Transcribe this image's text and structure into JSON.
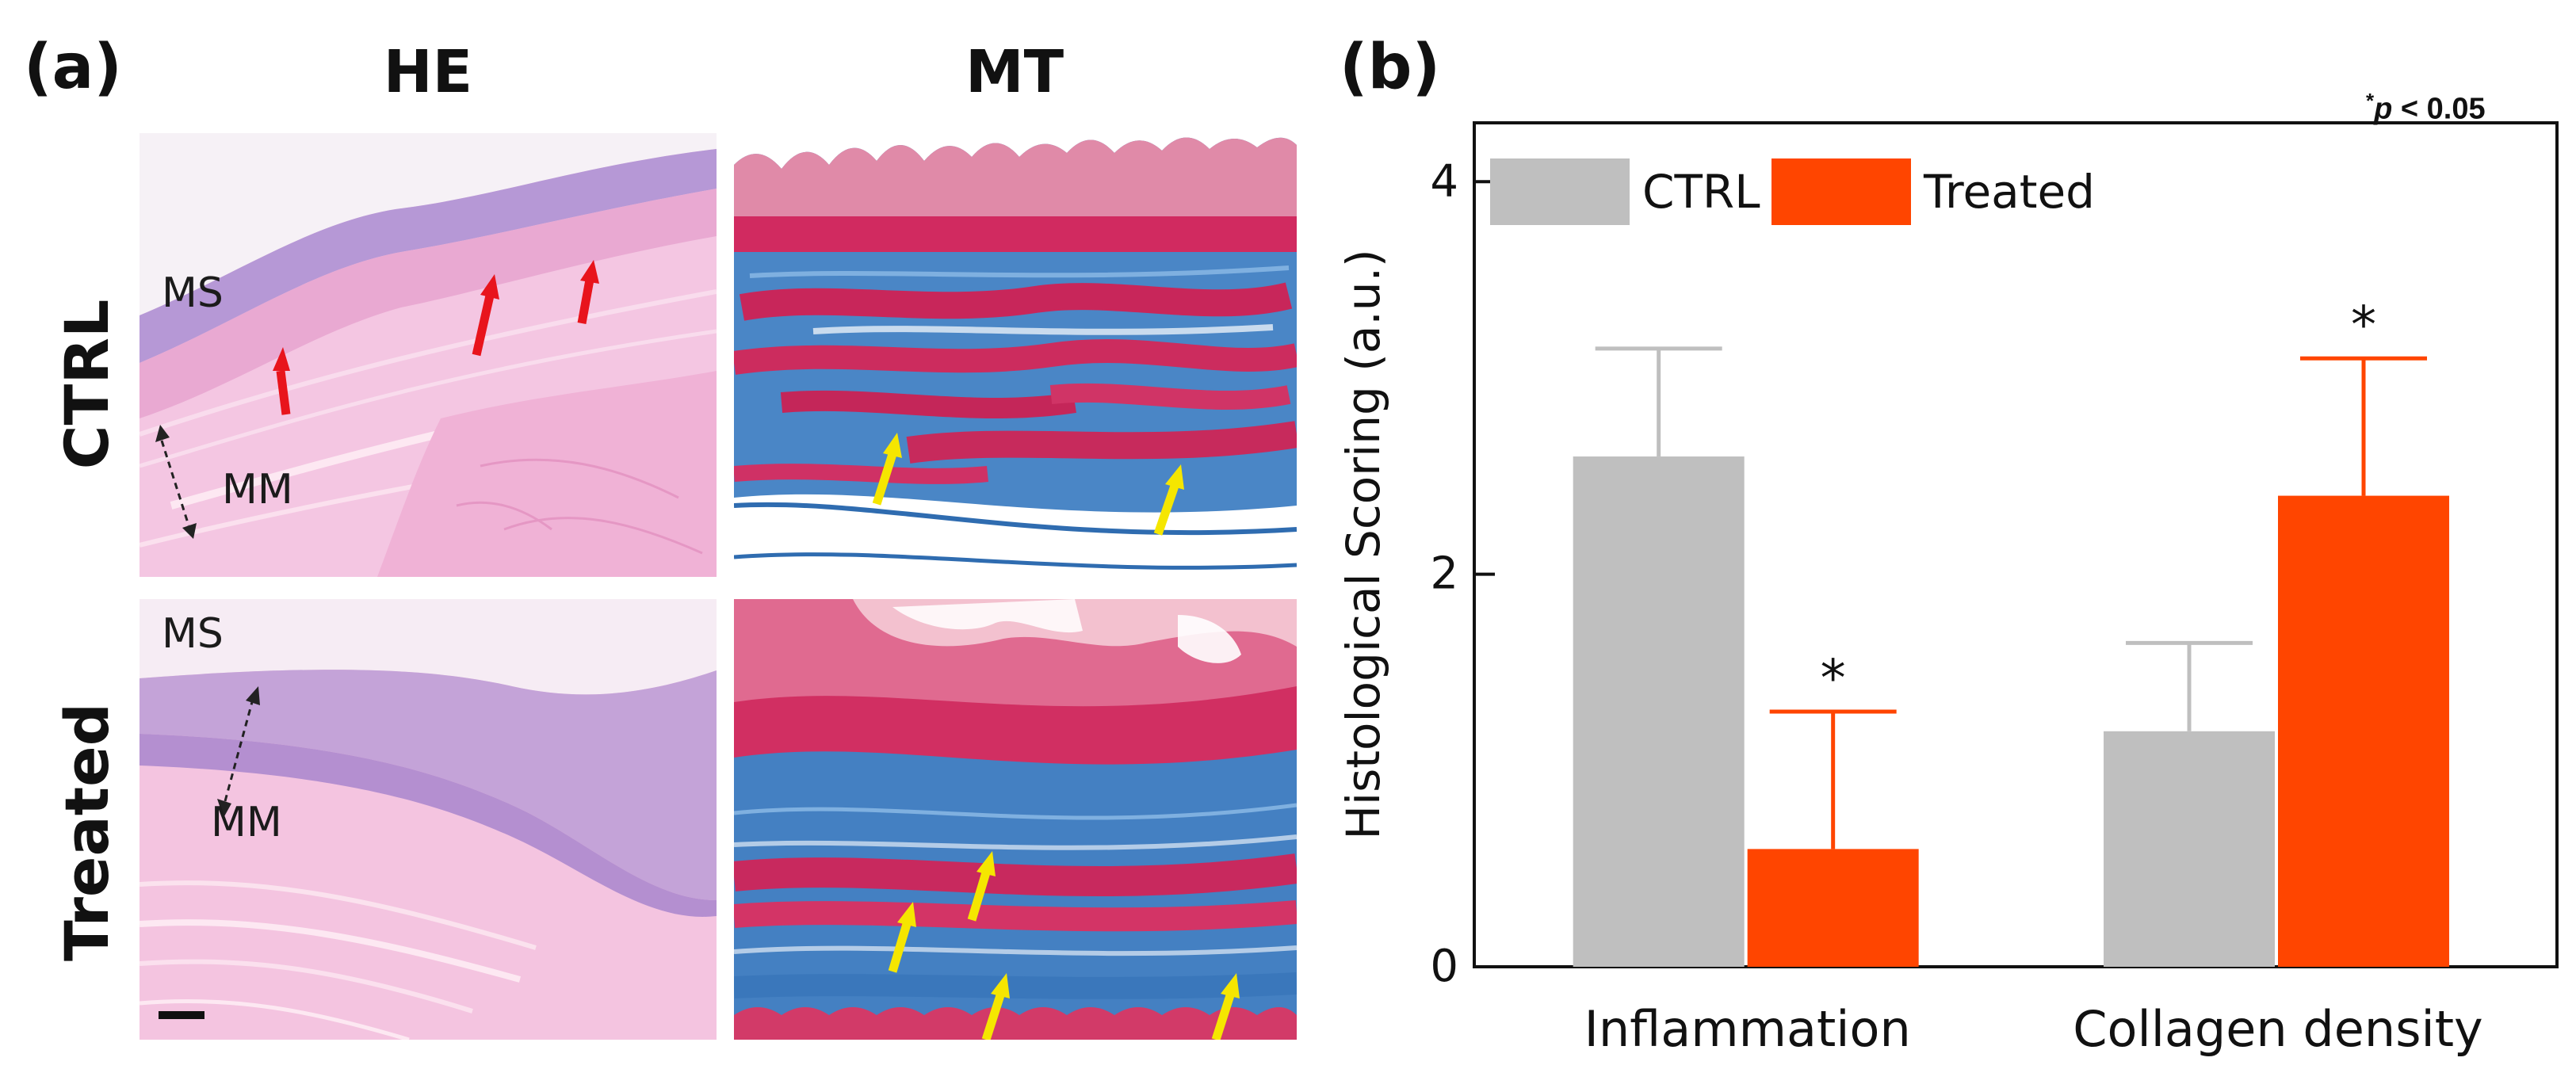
{
  "panel_a": {
    "label": "(a)",
    "columns": [
      "HE",
      "MT"
    ],
    "rows": [
      "CTRL",
      "Treated"
    ],
    "tissue_labels": {
      "ctrl_ms": "MS",
      "ctrl_mm": "MM",
      "treated_ms": "MS",
      "treated_mm": "MM"
    }
  },
  "panel_b": {
    "label": "(b)",
    "pvalue_star": "*",
    "pvalue_p": "p",
    "pvalue_rest": " < 0.05"
  },
  "colors": {
    "ctrl": "#bfbfbf",
    "treated": "#ff4500",
    "he_pink": "#f0b8d8",
    "he_purple": "#a889cf",
    "mt_red": "#d6356a",
    "mt_blue": "#3f7fc0",
    "arrow_red": "#e8141c",
    "arrow_yellow": "#f5e600"
  },
  "chart_data": {
    "type": "bar",
    "categories": [
      "Inflammation",
      "Collagen density"
    ],
    "series": [
      {
        "name": "CTRL",
        "values": [
          2.6,
          1.2
        ],
        "errors": [
          0.55,
          0.45
        ]
      },
      {
        "name": "Treated",
        "values": [
          0.6,
          2.4
        ],
        "errors": [
          0.7,
          0.7
        ]
      }
    ],
    "significance": [
      "*",
      "*"
    ],
    "ylabel": "Histological Scoring (a.u.)",
    "xlabel": "",
    "ylim": [
      0,
      4.3
    ],
    "yticks": [
      0,
      2,
      4
    ],
    "legend": {
      "placement": "top-left",
      "entries": [
        "CTRL",
        "Treated"
      ]
    }
  }
}
